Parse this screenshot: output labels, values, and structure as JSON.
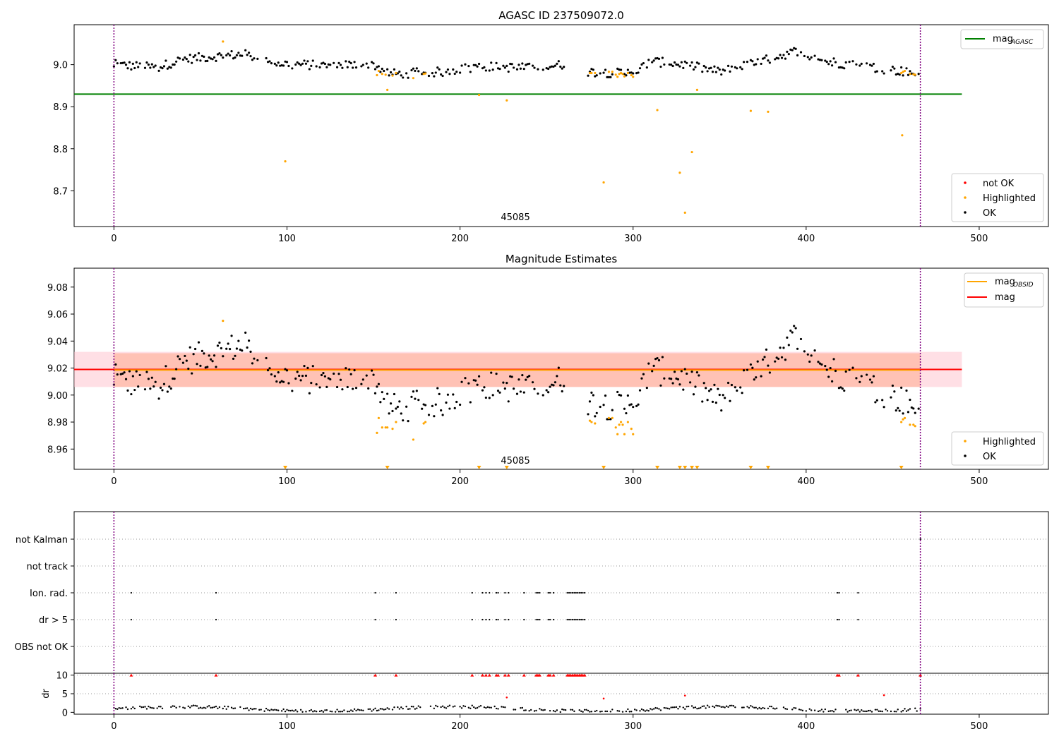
{
  "chart_data": [
    {
      "type": "scatter",
      "title": "AGASC ID 237509072.0",
      "xlim": [
        -23,
        540
      ],
      "ylim": [
        8.615,
        9.095
      ],
      "xticks": [
        0,
        100,
        200,
        300,
        400,
        500
      ],
      "yticks": [
        8.7,
        8.8,
        8.9,
        9.0
      ],
      "ytick_labels": [
        "8.7",
        "8.8",
        "8.9",
        "9.0"
      ],
      "obsid_label": "45085",
      "obsid_label_x": 232,
      "obs_bounds": [
        0,
        466
      ],
      "mag_agasc": 8.93,
      "mag_agasc_x_range": [
        -23,
        490
      ],
      "colors": {
        "ok": "#000000",
        "highlighted": "#ffa500",
        "not_ok": "#ff0000",
        "agasc": "#008000",
        "bounds": "#800080"
      },
      "legend_top": {
        "position": "top-right",
        "entries": [
          {
            "label": "mag",
            "sub": "AGASC",
            "color": "#008000"
          }
        ]
      },
      "legend_bottom": {
        "position": "lower-right",
        "entries": [
          {
            "label": "not OK",
            "color": "#ff0000"
          },
          {
            "label": "Highlighted",
            "color": "#ffa500"
          },
          {
            "label": "OK",
            "color": "#000000"
          }
        ]
      },
      "highlighted_points": [
        [
          63,
          9.055
        ],
        [
          99,
          8.77
        ],
        [
          152,
          8.975
        ],
        [
          153,
          8.985
        ],
        [
          155,
          8.978
        ],
        [
          157,
          8.976
        ],
        [
          158,
          8.94
        ],
        [
          161,
          8.974
        ],
        [
          163,
          8.98
        ],
        [
          173,
          8.968
        ],
        [
          179,
          8.978
        ],
        [
          180,
          8.979
        ],
        [
          211,
          8.928
        ],
        [
          227,
          8.915
        ],
        [
          275,
          8.98
        ],
        [
          276,
          8.98
        ],
        [
          278,
          8.98
        ],
        [
          283,
          8.72
        ],
        [
          286,
          8.983
        ],
        [
          288,
          8.983
        ],
        [
          290,
          8.976
        ],
        [
          291,
          8.971
        ],
        [
          292,
          8.978
        ],
        [
          293,
          8.98
        ],
        [
          294,
          8.978
        ],
        [
          295,
          8.972
        ],
        [
          297,
          8.98
        ],
        [
          299,
          8.975
        ],
        [
          300,
          8.971
        ],
        [
          314,
          8.892
        ],
        [
          327,
          8.743
        ],
        [
          330,
          8.648
        ],
        [
          334,
          8.792
        ],
        [
          337,
          8.94
        ],
        [
          368,
          8.89
        ],
        [
          378,
          8.888
        ],
        [
          455,
          8.98
        ],
        [
          456,
          8.983
        ],
        [
          457,
          8.985
        ],
        [
          455.5,
          8.832
        ],
        [
          460,
          8.978
        ],
        [
          462,
          8.977
        ],
        [
          463,
          8.976
        ]
      ]
    },
    {
      "type": "scatter",
      "title": "Magnitude Estimates",
      "xlim": [
        -23,
        540
      ],
      "ylim": [
        8.945,
        9.094
      ],
      "xticks": [
        0,
        100,
        200,
        300,
        400,
        500
      ],
      "yticks": [
        8.96,
        8.98,
        9.0,
        9.02,
        9.04,
        9.06,
        9.08
      ],
      "ytick_labels": [
        "8.96",
        "8.98",
        "9.00",
        "9.02",
        "9.04",
        "9.06",
        "9.08"
      ],
      "obsid_label": "45085",
      "obsid_label_x": 232,
      "obs_bounds": [
        0,
        466
      ],
      "mag": 9.019,
      "mag_band": [
        9.006,
        9.032
      ],
      "mag_obsid": 9.0185,
      "mag_obsid_band": [
        9.006,
        9.031
      ],
      "line_x_range": [
        -23,
        490
      ],
      "colors": {
        "ok": "#000000",
        "highlighted": "#ffa500",
        "mag": "#ff0000",
        "mag_obsid": "#ffa500",
        "band": "#ffc0cb",
        "obsid_band": "#ffa07a"
      },
      "legend_top": {
        "position": "top-right",
        "entries": [
          {
            "label": "mag",
            "sub": "OBSID",
            "color": "#ffa500"
          },
          {
            "label": "mag",
            "sub": "",
            "color": "#ff0000"
          }
        ]
      },
      "legend_bottom": {
        "position": "lower-right",
        "entries": [
          {
            "label": "Highlighted",
            "color": "#ffa500"
          },
          {
            "label": "OK",
            "color": "#000000"
          }
        ]
      },
      "highlighted_points": [
        [
          63,
          9.055
        ],
        [
          152,
          8.972
        ],
        [
          153,
          8.983
        ],
        [
          155,
          8.976
        ],
        [
          157,
          8.976
        ],
        [
          158,
          8.976
        ],
        [
          161,
          8.975
        ],
        [
          163,
          8.98
        ],
        [
          173,
          8.967
        ],
        [
          179,
          8.979
        ],
        [
          180,
          8.98
        ],
        [
          275,
          8.981
        ],
        [
          276,
          8.98
        ],
        [
          278,
          8.979
        ],
        [
          286,
          8.983
        ],
        [
          288,
          8.983
        ],
        [
          290,
          8.976
        ],
        [
          291,
          8.971
        ],
        [
          292,
          8.978
        ],
        [
          293,
          8.98
        ],
        [
          294,
          8.978
        ],
        [
          295,
          8.971
        ],
        [
          297,
          8.98
        ],
        [
          299,
          8.975
        ],
        [
          300,
          8.971
        ],
        [
          455,
          8.98
        ],
        [
          456,
          8.982
        ],
        [
          457,
          8.983
        ],
        [
          460,
          8.978
        ],
        [
          462,
          8.978
        ],
        [
          463,
          8.977
        ]
      ],
      "outlier_markers_x": [
        99,
        158,
        211,
        227,
        283,
        314,
        327,
        330,
        334,
        337,
        368,
        378,
        455
      ]
    },
    {
      "type": "scatter",
      "title": "",
      "xlim": [
        -23,
        540
      ],
      "xticks": [
        0,
        100,
        200,
        300,
        400,
        500
      ],
      "obs_bounds": [
        0,
        466
      ],
      "flag_rows": [
        "not Kalman",
        "not track",
        "Ion. rad.",
        "dr > 5",
        "OBS not OK"
      ],
      "flag_x": [
        10,
        59,
        151,
        163,
        207,
        213,
        215,
        217,
        221,
        222,
        226,
        228,
        237,
        244,
        245,
        246,
        251,
        252,
        254,
        262,
        263,
        264,
        265,
        266,
        267,
        268,
        269,
        270,
        271,
        272,
        418,
        419,
        430
      ],
      "not_kalman_x": [
        466
      ]
    },
    {
      "type": "scatter",
      "title": "",
      "ylabel": "dr",
      "xlim": [
        -23,
        540
      ],
      "ylim": [
        -0.5,
        10.5
      ],
      "xticks": [
        0,
        100,
        200,
        300,
        400,
        500
      ],
      "xtick_labels": [
        "0",
        "100",
        "200",
        "300",
        "400",
        "500"
      ],
      "yticks": [
        0,
        5,
        10
      ],
      "ytick_labels": [
        "0",
        "5",
        "10"
      ],
      "obs_bounds": [
        0,
        466
      ],
      "clipped_x": [
        10,
        59,
        151,
        163,
        207,
        213,
        215,
        217,
        221,
        222,
        226,
        228,
        237,
        244,
        245,
        246,
        251,
        252,
        254,
        262,
        263,
        264,
        265,
        266,
        267,
        268,
        269,
        270,
        271,
        272,
        418,
        419,
        430,
        466
      ],
      "red_points": [
        [
          227,
          4.0
        ],
        [
          283,
          3.7
        ],
        [
          330,
          4.5
        ],
        [
          445,
          4.6
        ]
      ],
      "colors": {
        "ok": "#000000",
        "red": "#ff0000"
      }
    }
  ]
}
